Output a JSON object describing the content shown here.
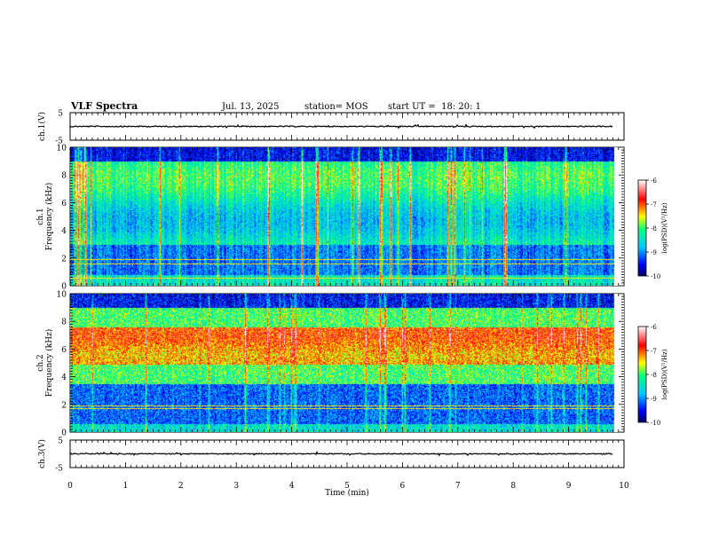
{
  "header": {
    "title": "VLF Spectra",
    "date": "Jul. 13, 2025",
    "station": "station= MOS",
    "start": "start UT =  18: 20: 1"
  },
  "chart_data": {
    "type": "heatmap",
    "title": "VLF Spectra",
    "xlabel": "Time (min)",
    "xlim": [
      0,
      10
    ],
    "x_ticks": [
      "0",
      "1",
      "2",
      "3",
      "4",
      "5",
      "6",
      "7",
      "8",
      "9",
      "10"
    ],
    "panels": [
      {
        "id": "ch1-waveform",
        "type": "line",
        "ylabel": "ch.1(V)",
        "ylim": [
          -5,
          5
        ],
        "y_ticks": [
          "5",
          "-5"
        ],
        "baseline": 0
      },
      {
        "id": "ch1-spectrogram",
        "type": "heatmap",
        "ylabel_line1": "ch.1",
        "ylabel_line2": "Frequency (kHz)",
        "ylim": [
          0,
          10
        ],
        "y_ticks": [
          "0",
          "2",
          "4",
          "6",
          "8",
          "10"
        ],
        "data_extent_min": 9.8,
        "lines_khz": [
          0.6,
          1.6,
          1.9
        ]
      },
      {
        "id": "ch2-spectrogram",
        "type": "heatmap",
        "ylabel_line1": "ch.2",
        "ylabel_line2": "Frequency (kHz)",
        "ylim": [
          0,
          10
        ],
        "y_ticks": [
          "0",
          "2",
          "4",
          "6",
          "8",
          "10"
        ],
        "data_extent_min": 9.8,
        "peak_band_khz": [
          5.0,
          7.5
        ],
        "lines_khz": [
          1.7,
          1.9
        ]
      },
      {
        "id": "ch3-waveform",
        "type": "line",
        "ylabel": "ch.3(V)",
        "ylim": [
          -5,
          5
        ],
        "y_ticks": [
          "5",
          "-5"
        ],
        "baseline": 0
      }
    ],
    "colorbar": {
      "label": "log(PSD)(V²/Hz)",
      "range": [
        -10,
        -6
      ],
      "ticks": [
        "-6",
        "-7",
        "-8",
        "-9",
        "-10"
      ],
      "colors": [
        "#000060",
        "#0000ff",
        "#00c8ff",
        "#00ff80",
        "#ffff00",
        "#ff0000",
        "#ffffff"
      ]
    }
  }
}
